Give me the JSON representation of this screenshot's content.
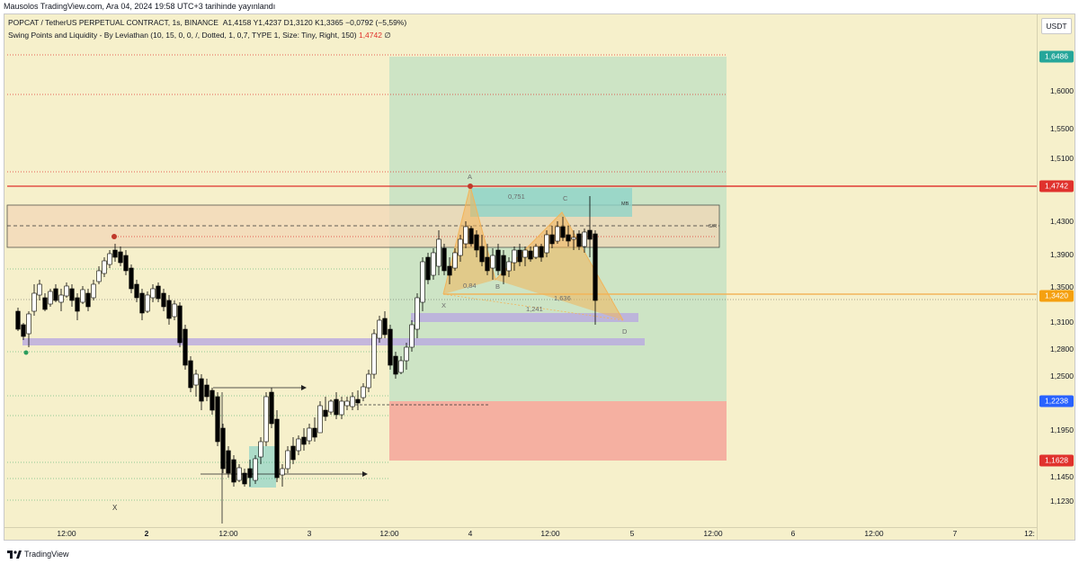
{
  "header": {
    "published": "Mausolos TradingView.com, Ara 04, 2024 19:58 UTC+3 tarihinde yayınlandı"
  },
  "legend": {
    "symbol_line": "POPCAT / TetherUS PERPETUAL CONTRACT, 1s, BINANCE",
    "ohlc": "A1,4158  Y1,4237  D1,3120  K1,3365  −0,0792 (−5,59%)",
    "indicator_line": "Swing Points and Liquidity - By Leviathan (10, 15, 0, 0, /, Dotted, 1, 0,7, TYPE 1, Size: Tiny, Right, 150)",
    "indicator_value": "1,4742",
    "indicator_suffix": "∅"
  },
  "price_axis": {
    "currency_button": "USDT",
    "labels": [
      "1,6000",
      "1,5500",
      "1,5100",
      "1,4300",
      "1,3900",
      "1,3500",
      "1,3100",
      "1,2800",
      "1,2500",
      "1,1950",
      "1,1450",
      "1,1230"
    ],
    "tags": [
      {
        "text": "1,6486",
        "color": "#26a69a"
      },
      {
        "text": "1,4742",
        "color": "#e0322d"
      },
      {
        "text": "1,3420",
        "color": "#f5a010"
      },
      {
        "text": "1,2238",
        "color": "#2962ff"
      },
      {
        "text": "1,1628",
        "color": "#e0322d"
      }
    ]
  },
  "time_axis": {
    "labels": [
      {
        "text": "12:00",
        "bold": false
      },
      {
        "text": "2",
        "bold": true
      },
      {
        "text": "12:00",
        "bold": false
      },
      {
        "text": "3",
        "bold": false
      },
      {
        "text": "12:00",
        "bold": false
      },
      {
        "text": "4",
        "bold": false
      },
      {
        "text": "12:00",
        "bold": false
      },
      {
        "text": "5",
        "bold": false
      },
      {
        "text": "12:00",
        "bold": false
      },
      {
        "text": "6",
        "bold": false
      },
      {
        "text": "12:00",
        "bold": false
      },
      {
        "text": "7",
        "bold": false
      },
      {
        "text": "12:",
        "bold": false
      }
    ]
  },
  "pattern": {
    "point_a": "A",
    "point_b": "B",
    "point_c": "C",
    "point_d": "D",
    "point_x": "X",
    "ratio_xb": "0,84",
    "ratio_ac": "0,751",
    "ratio_bd": "1,636",
    "ratio_xd": "1,241",
    "label_mb": "MB",
    "label_sr": "S/R",
    "label_x_low": "X"
  },
  "colors": {
    "background": "#f6f0cb",
    "up_candle": "#ffffff",
    "down_candle": "#000000",
    "target_zone": "#c6e2c4",
    "stop_zone": "#f5a99c",
    "sr_zone": "#f2d7b7",
    "liquidity_band": "#b9a9e0",
    "pattern_fill": "#f2b45a"
  },
  "footer": {
    "brand": "TradingView"
  }
}
